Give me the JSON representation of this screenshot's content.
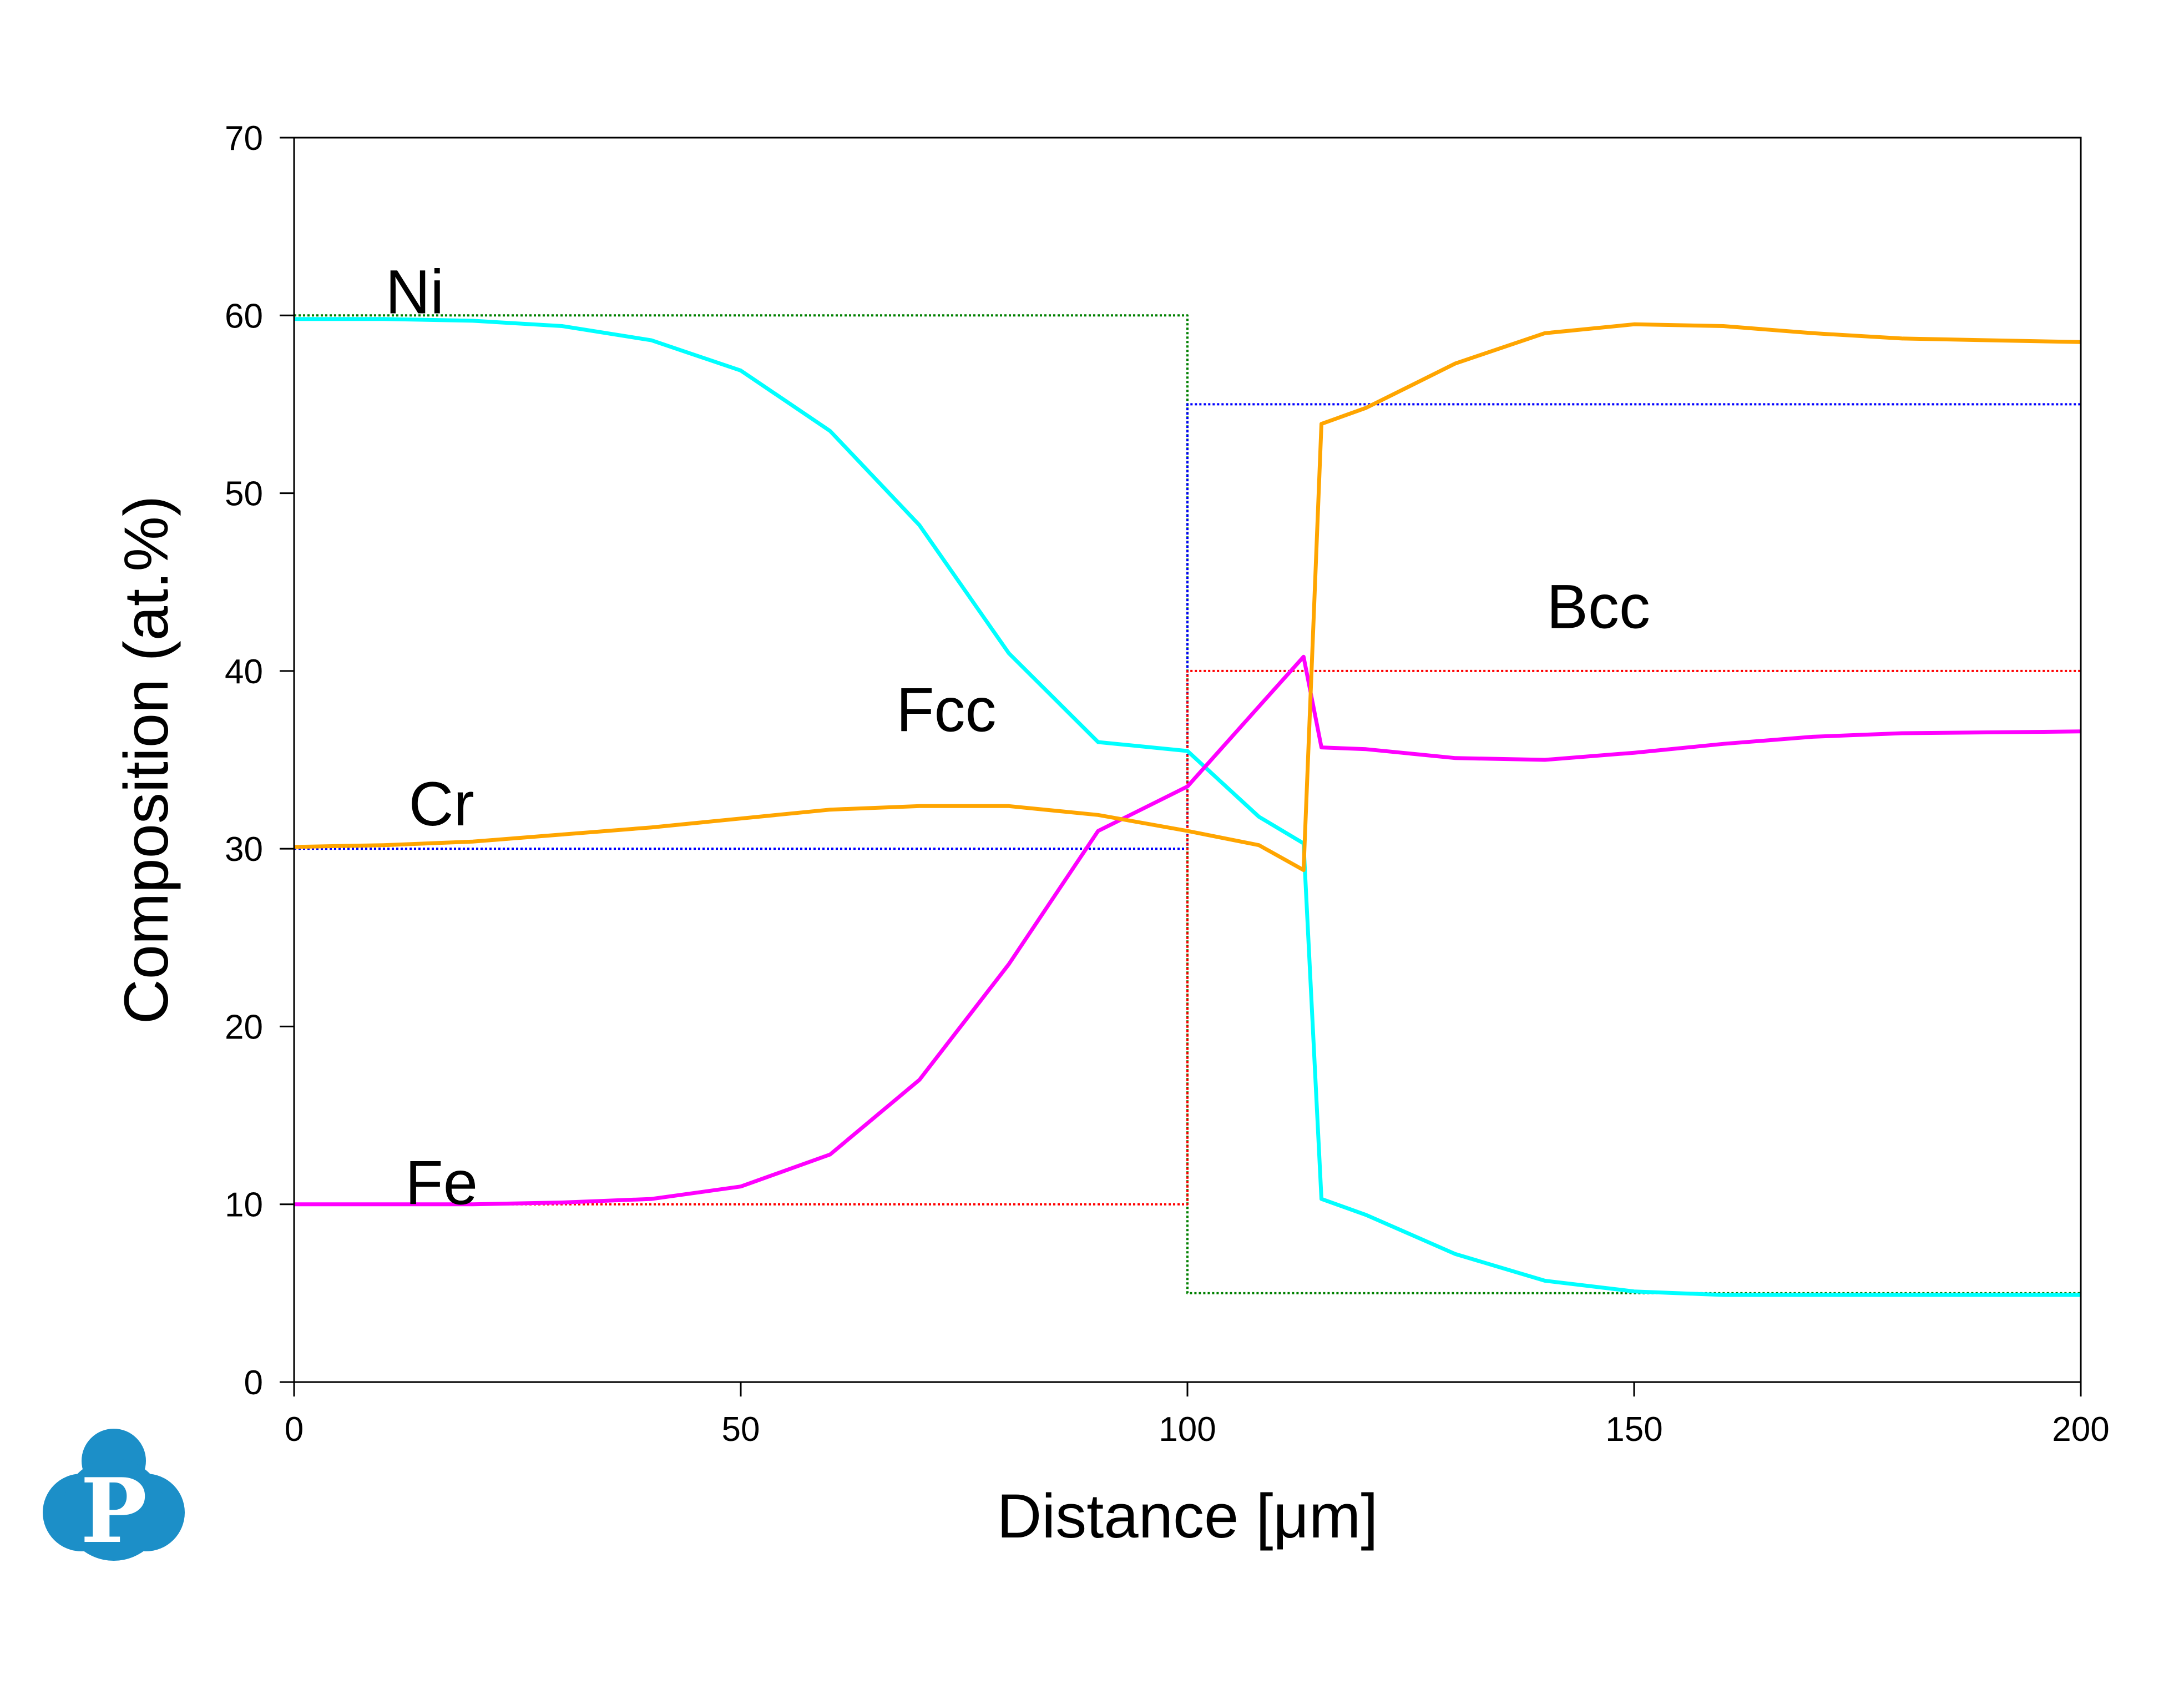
{
  "chart_data": {
    "type": "line",
    "xlabel": "Distance [μm]",
    "ylabel": "Composition (at.%)",
    "xlim": [
      0,
      200
    ],
    "ylim": [
      0,
      70
    ],
    "x_ticks": [
      "0",
      "50",
      "100",
      "150",
      "200"
    ],
    "y_ticks": [
      "0",
      "10",
      "20",
      "30",
      "40",
      "50",
      "60",
      "70"
    ],
    "grid": false,
    "legend": "none",
    "annotations": [
      {
        "text": "Ni",
        "x": 13.5,
        "y": 61.3
      },
      {
        "text": "Cr",
        "x": 16.5,
        "y": 32.5
      },
      {
        "text": "Fe",
        "x": 16.5,
        "y": 11.2
      },
      {
        "text": "Fcc",
        "x": 73,
        "y": 37.8
      },
      {
        "text": "Bcc",
        "x": 146,
        "y": 43.6
      }
    ],
    "series": [
      {
        "color": "#00ffff",
        "style": "solid",
        "points": [
          [
            0,
            59.8
          ],
          [
            10,
            59.8
          ],
          [
            20,
            59.7
          ],
          [
            30,
            59.4
          ],
          [
            40,
            58.6
          ],
          [
            50,
            56.9
          ],
          [
            60,
            53.5
          ],
          [
            70,
            48.2
          ],
          [
            80,
            41.0
          ],
          [
            90,
            36.0
          ],
          [
            100,
            35.5
          ],
          [
            108,
            31.8
          ],
          [
            113,
            30.3
          ],
          [
            115,
            10.3
          ],
          [
            120,
            9.4
          ],
          [
            130,
            7.2
          ],
          [
            140,
            5.7
          ],
          [
            150,
            5.1
          ],
          [
            160,
            4.9
          ],
          [
            170,
            4.9
          ],
          [
            200,
            4.9
          ]
        ]
      },
      {
        "color": "#ff00ff",
        "style": "solid",
        "points": [
          [
            0,
            10.0
          ],
          [
            10,
            10.0
          ],
          [
            20,
            10.0
          ],
          [
            30,
            10.1
          ],
          [
            40,
            10.3
          ],
          [
            50,
            11.0
          ],
          [
            60,
            12.8
          ],
          [
            70,
            17.0
          ],
          [
            80,
            23.5
          ],
          [
            90,
            31.0
          ],
          [
            100,
            33.5
          ],
          [
            108,
            38.0
          ],
          [
            113,
            40.8
          ],
          [
            115,
            35.7
          ],
          [
            120,
            35.6
          ],
          [
            130,
            35.1
          ],
          [
            140,
            35.0
          ],
          [
            150,
            35.4
          ],
          [
            160,
            35.9
          ],
          [
            170,
            36.3
          ],
          [
            180,
            36.5
          ],
          [
            200,
            36.6
          ]
        ]
      },
      {
        "color": "#ffa500",
        "style": "solid",
        "points": [
          [
            0,
            30.1
          ],
          [
            10,
            30.2
          ],
          [
            20,
            30.4
          ],
          [
            30,
            30.8
          ],
          [
            40,
            31.2
          ],
          [
            50,
            31.7
          ],
          [
            60,
            32.2
          ],
          [
            70,
            32.4
          ],
          [
            80,
            32.4
          ],
          [
            90,
            31.9
          ],
          [
            100,
            31.0
          ],
          [
            108,
            30.2
          ],
          [
            113,
            28.8
          ],
          [
            115,
            53.9
          ],
          [
            120,
            54.8
          ],
          [
            130,
            57.3
          ],
          [
            140,
            59.0
          ],
          [
            150,
            59.5
          ],
          [
            160,
            59.4
          ],
          [
            170,
            59.0
          ],
          [
            180,
            58.7
          ],
          [
            200,
            58.5
          ]
        ]
      },
      {
        "color": "#008000",
        "style": "dotted",
        "points": [
          [
            0,
            60
          ],
          [
            100,
            60
          ],
          [
            100,
            5
          ],
          [
            200,
            5
          ]
        ]
      },
      {
        "color": "#0000ff",
        "style": "dotted",
        "points": [
          [
            0,
            30
          ],
          [
            100,
            30
          ],
          [
            100,
            55
          ],
          [
            200,
            55
          ]
        ]
      },
      {
        "color": "#ff0000",
        "style": "dotted",
        "points": [
          [
            0,
            10
          ],
          [
            100,
            10
          ],
          [
            100,
            40
          ],
          [
            200,
            40
          ]
        ]
      }
    ]
  },
  "logo": {
    "letter": "P",
    "color": "#1c8fc8"
  }
}
